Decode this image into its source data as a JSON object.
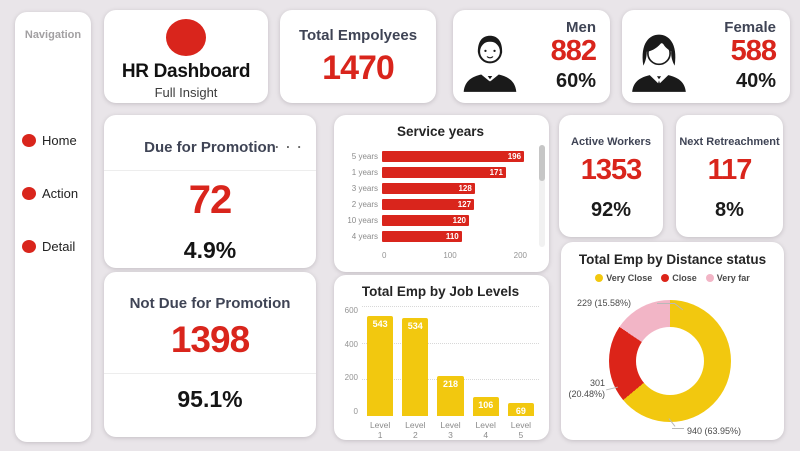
{
  "colors": {
    "red": "#d9251c",
    "yellow": "#f2c80f",
    "pink": "#f2b5c6",
    "background": "#e9e5e9",
    "kpi_label": "#3f4455"
  },
  "sidebar": {
    "title": "Navigation",
    "items": [
      "Home",
      "Action",
      "Detail"
    ]
  },
  "header": {
    "brand": {
      "title": "HR Dashboard",
      "subtitle": "Full Insight"
    },
    "total_employees": {
      "label": "Total Empolyees",
      "value": "1470"
    },
    "men": {
      "label": "Men",
      "value": "882",
      "percent": "60%"
    },
    "female": {
      "label": "Female",
      "value": "588",
      "percent": "40%"
    }
  },
  "kpis": {
    "due_promotion": {
      "label": "Due for Promotion",
      "value": "72",
      "percent": "4.9%",
      "menu": ". . ."
    },
    "not_due_promotion": {
      "label": "Not Due for Promotion",
      "value": "1398",
      "percent": "95.1%"
    },
    "active_workers": {
      "label": "Active Workers",
      "value": "1353",
      "percent": "92%"
    },
    "next_retrenchment": {
      "label": "Next Retreachment",
      "value": "117",
      "percent": "8%"
    }
  },
  "chart_data": [
    {
      "id": "service_years",
      "type": "bar",
      "orientation": "horizontal",
      "title": "Service years",
      "categories": [
        "5 years",
        "1 years",
        "3 years",
        "2 years",
        "10 years",
        "4 years"
      ],
      "values": [
        196,
        171,
        128,
        127,
        120,
        110
      ],
      "xlim": [
        0,
        200
      ],
      "x_ticks": [
        "0",
        "100",
        "200"
      ],
      "bar_color": "#d9251c",
      "value_label_color": "#ffffff",
      "has_scrollbar": true
    },
    {
      "id": "job_levels",
      "type": "bar",
      "orientation": "vertical",
      "title": "Total Emp by Job Levels",
      "categories": [
        "Level 1",
        "Level 2",
        "Level 3",
        "Level 4",
        "Level 5"
      ],
      "values": [
        543,
        534,
        218,
        106,
        69
      ],
      "ylim": [
        0,
        600
      ],
      "y_ticks": [
        "600",
        "400",
        "200",
        "0"
      ],
      "gridline_values": [
        600,
        400,
        200
      ],
      "grid": "dotted",
      "bar_color": "#f2c80f",
      "value_label_color": "#ffffff"
    },
    {
      "id": "distance_status",
      "type": "pie",
      "donut": true,
      "title": "Total Emp by Distance status",
      "legend_position": "top",
      "slices": [
        {
          "label": "Very Close",
          "value": 940,
          "percent": "63.95%",
          "color": "#f2c80f",
          "callout": "940 (63.95%)"
        },
        {
          "label": "Close",
          "value": 301,
          "percent": "20.48%",
          "color": "#dc2419",
          "callout": "301 (20.48%)"
        },
        {
          "label": "Very far",
          "value": 229,
          "percent": "15.58%",
          "color": "#f2b5c6",
          "callout": "229 (15.58%)"
        }
      ]
    }
  ]
}
